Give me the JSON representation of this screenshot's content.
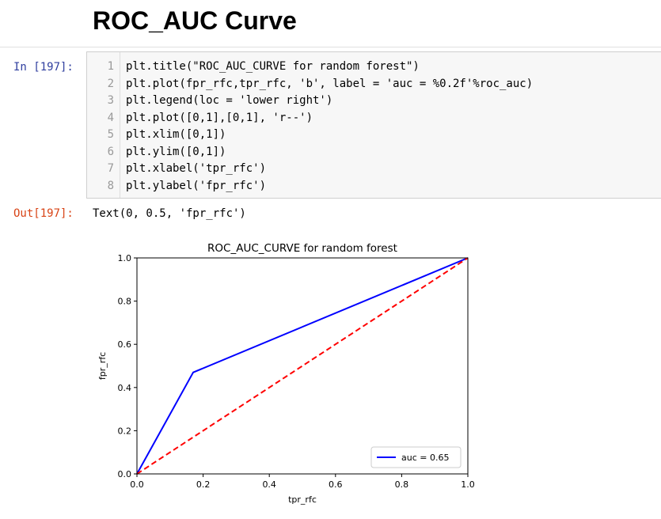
{
  "heading": "ROC_AUC Curve",
  "cell": {
    "in_prompt": "In [197]:",
    "out_prompt": "Out[197]:",
    "code_lines": [
      {
        "n": "1",
        "text": "plt.title(\"ROC_AUC_CURVE for random forest\")"
      },
      {
        "n": "2",
        "text": "plt.plot(fpr_rfc,tpr_rfc, 'b', label = 'auc = %0.2f'%roc_auc)"
      },
      {
        "n": "3",
        "text": "plt.legend(loc = 'lower right')"
      },
      {
        "n": "4",
        "text": "plt.plot([0,1],[0,1], 'r--')"
      },
      {
        "n": "5",
        "text": "plt.xlim([0,1])"
      },
      {
        "n": "6",
        "text": "plt.ylim([0,1])"
      },
      {
        "n": "7",
        "text": "plt.xlabel('tpr_rfc')"
      },
      {
        "n": "8",
        "text": "plt.ylabel('fpr_rfc')"
      }
    ],
    "output_text": "Text(0, 0.5, 'fpr_rfc')"
  },
  "chart_data": {
    "type": "line",
    "title": "ROC_AUC_CURVE for random forest",
    "xlabel": "tpr_rfc",
    "ylabel": "fpr_rfc",
    "xlim": [
      0,
      1
    ],
    "ylim": [
      0,
      1
    ],
    "xticks": [
      "0.0",
      "0.2",
      "0.4",
      "0.6",
      "0.8",
      "1.0"
    ],
    "yticks": [
      "0.0",
      "0.2",
      "0.4",
      "0.6",
      "0.8",
      "1.0"
    ],
    "grid": false,
    "legend_position": "lower right",
    "series": [
      {
        "name": "auc = 0.65",
        "x": [
          0,
          0.17,
          1
        ],
        "y": [
          0,
          0.47,
          1
        ],
        "color": "#0000ff",
        "style": "solid"
      },
      {
        "x": [
          0,
          1
        ],
        "y": [
          0,
          1
        ],
        "color": "#ff0000",
        "style": "dashed"
      }
    ]
  }
}
